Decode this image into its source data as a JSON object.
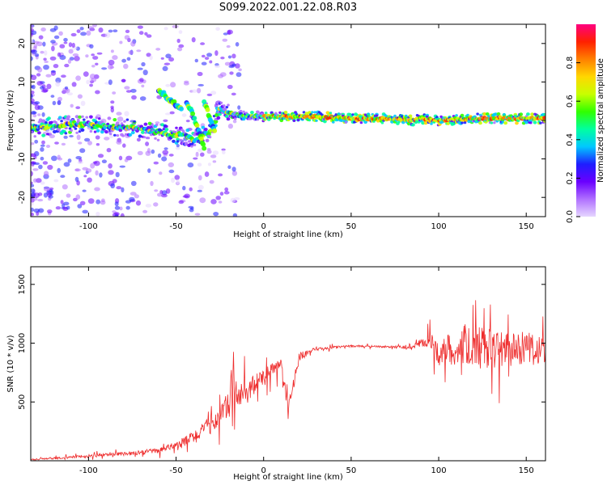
{
  "title": "S099.2022.001.22.08.R03",
  "chart_data": [
    {
      "type": "heatmap",
      "xlabel": "Height of straight line (km)",
      "ylabel": "Frequency (Hz)",
      "xlim": [
        -133,
        161
      ],
      "ylim": [
        -25,
        25
      ],
      "x_ticks": [
        -100,
        -50,
        0,
        50,
        100,
        150
      ],
      "y_ticks": [
        -20,
        -10,
        0,
        10,
        20
      ],
      "colorbar": {
        "label": "Normalized spectral amplitude",
        "range": [
          0,
          1
        ],
        "ticks": [
          "0.0",
          "0.2",
          "0.4",
          "0.6",
          "0.8"
        ],
        "colormap": [
          "#e6d6ff",
          "#b070ff",
          "#6a00ff",
          "#1e1eff",
          "#00c8ff",
          "#00ffa0",
          "#30ff00",
          "#c8ff00",
          "#ffd700",
          "#ff8000",
          "#ff2000",
          "#ff0080"
        ]
      },
      "ridge": {
        "x": [
          -130,
          -110,
          -90,
          -75,
          -60,
          -55,
          -45,
          -40,
          -35,
          -30,
          -25,
          -20,
          -10,
          0,
          10,
          30,
          50,
          70,
          85,
          90,
          100,
          120,
          140,
          160
        ],
        "frequency": [
          -2,
          -1,
          -1.5,
          -2,
          -3,
          -3.5,
          -4,
          -5,
          -4,
          -3,
          3,
          2,
          1,
          1,
          1,
          1,
          0.5,
          0.5,
          0,
          0.5,
          0,
          0.5,
          0.5,
          0.5
        ]
      },
      "branches": [
        {
          "x": [
            -60,
            -55,
            -50,
            -47
          ],
          "frequency": [
            8,
            6,
            4,
            3
          ]
        },
        {
          "x": [
            -44,
            -40,
            -36,
            -34
          ],
          "frequency": [
            5,
            1,
            -4,
            -7
          ]
        },
        {
          "x": [
            -34,
            -31,
            -28
          ],
          "frequency": [
            5,
            1,
            -3
          ]
        }
      ]
    },
    {
      "type": "line",
      "xlabel": "Height of straight line (km)",
      "ylabel": "SNR (10 * v/v)",
      "xlim": [
        -133,
        161
      ],
      "ylim": [
        0,
        1650
      ],
      "x_ticks": [
        -100,
        -50,
        0,
        50,
        100,
        150
      ],
      "y_ticks": [
        500,
        1000,
        1500
      ],
      "series": [
        {
          "color": "#ee2b2b",
          "x": [
            -133,
            -120,
            -110,
            -100,
            -90,
            -80,
            -70,
            -60,
            -50,
            -45,
            -40,
            -35,
            -30,
            -25,
            -20,
            -17,
            -15,
            -10,
            -5,
            0,
            5,
            10,
            14,
            20,
            25,
            30,
            40,
            50,
            60,
            70,
            80,
            85,
            90,
            95,
            100,
            105,
            110,
            115,
            120,
            125,
            130,
            135,
            140,
            145,
            150,
            155,
            161
          ],
          "values": [
            10,
            20,
            30,
            40,
            50,
            60,
            70,
            90,
            120,
            160,
            200,
            250,
            310,
            380,
            470,
            600,
            520,
            580,
            650,
            700,
            760,
            830,
            420,
            880,
            920,
            945,
            965,
            975,
            975,
            970,
            965,
            970,
            990,
            1020,
            920,
            960,
            930,
            1000,
            920,
            950,
            960,
            940,
            960,
            930,
            980,
            920,
            940
          ],
          "noise_amplitude": [
            10,
            15,
            20,
            25,
            25,
            30,
            35,
            45,
            70,
            90,
            110,
            120,
            140,
            170,
            230,
            700,
            220,
            200,
            160,
            140,
            130,
            100,
            120,
            70,
            50,
            30,
            20,
            15,
            15,
            15,
            25,
            60,
            80,
            120,
            180,
            220,
            260,
            300,
            320,
            340,
            300,
            300,
            260,
            280,
            260,
            250,
            250
          ]
        }
      ]
    }
  ]
}
